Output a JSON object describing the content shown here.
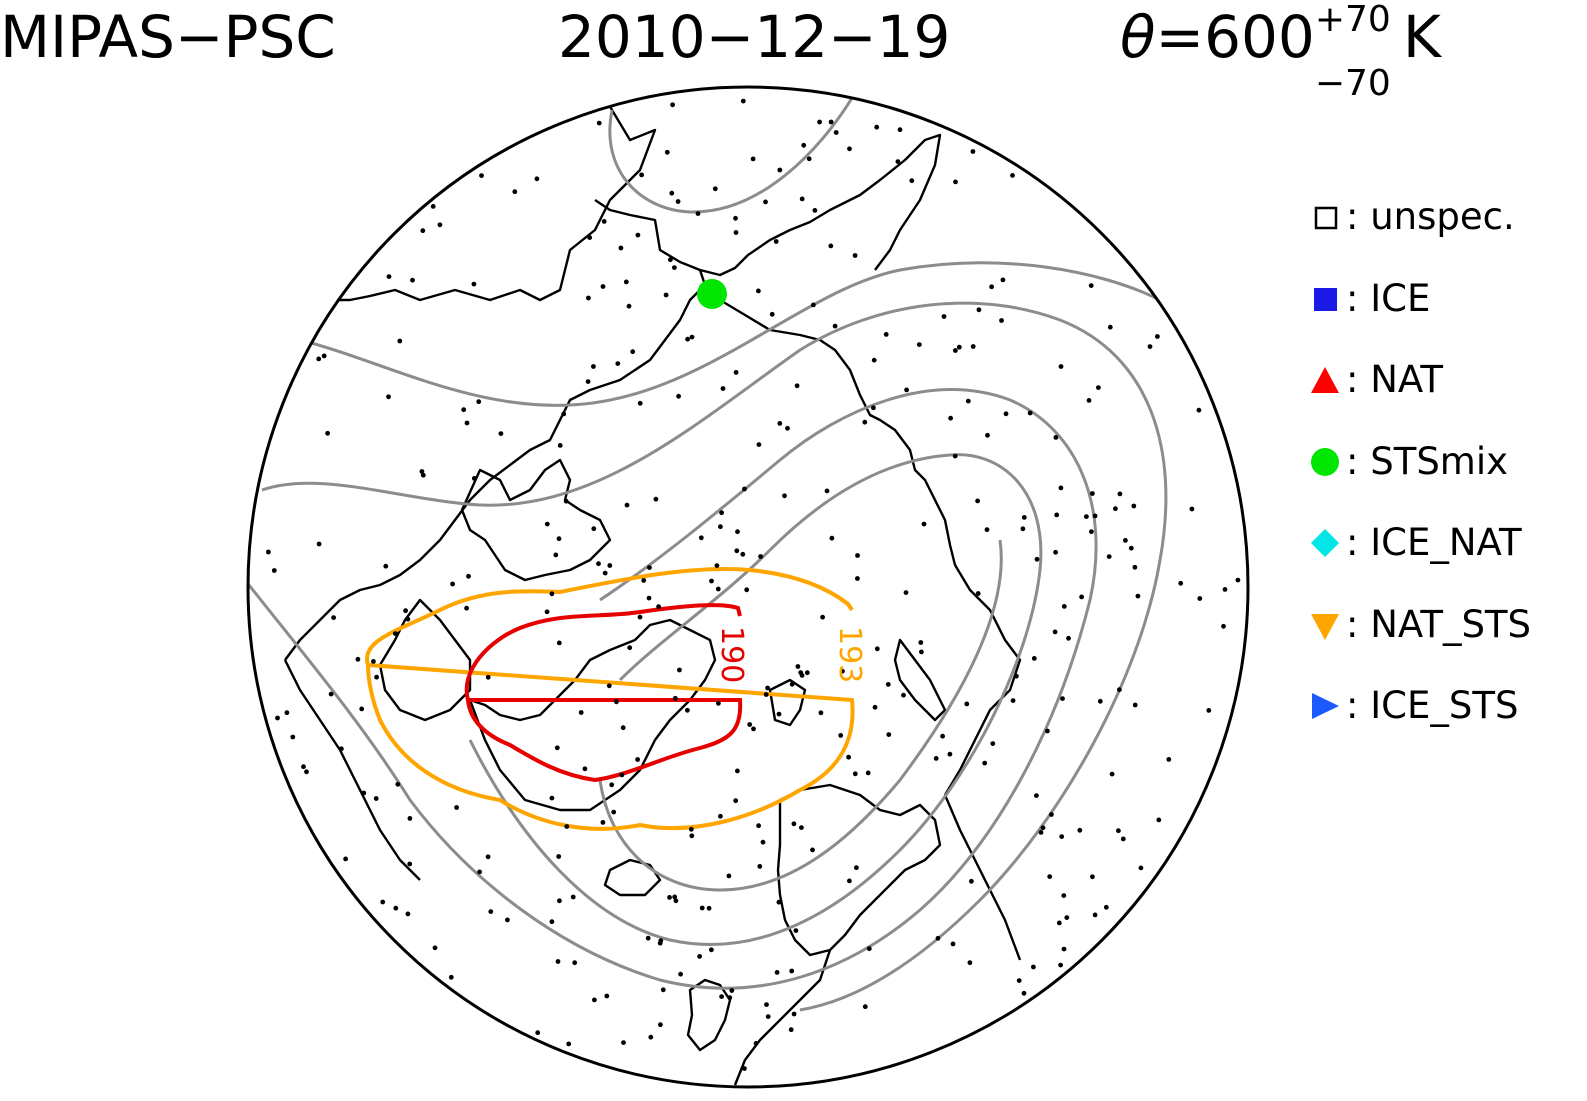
{
  "header": {
    "instrument": "MIPAS−PSC",
    "date": "2010−12−19",
    "theta_symbol": "θ",
    "theta_value": "=600",
    "theta_upper": "+70",
    "theta_lower": "−70",
    "theta_unit": "K"
  },
  "legend": {
    "items": [
      {
        "label": ": unspec.",
        "marker": "open-square",
        "color": "#000000"
      },
      {
        "label": ": ICE",
        "marker": "filled-square",
        "color": "#1a1ae6"
      },
      {
        "label": ": NAT",
        "marker": "triangle-up",
        "color": "#ff0000"
      },
      {
        "label": ": STSmix",
        "marker": "circle",
        "color": "#00e600"
      },
      {
        "label": ": ICE_NAT",
        "marker": "diamond",
        "color": "#00e6e6"
      },
      {
        "label": ": NAT_STS",
        "marker": "triangle-down",
        "color": "#ffa500"
      },
      {
        "label": ": ICE_STS",
        "marker": "triangle-right",
        "color": "#1a5aff"
      }
    ]
  },
  "map": {
    "projection": "polar stereographic (north pole)",
    "contour_labels": [
      {
        "text": "190",
        "color": "#e60000"
      },
      {
        "text": "193",
        "color": "#ffa500"
      }
    ],
    "stsmix_observations": 1,
    "colors": {
      "coastline": "#000000",
      "background_contour": "#8c8c8c",
      "contour_190": "#e60000",
      "contour_193": "#ffa500",
      "measurement_point": "#000000"
    }
  }
}
